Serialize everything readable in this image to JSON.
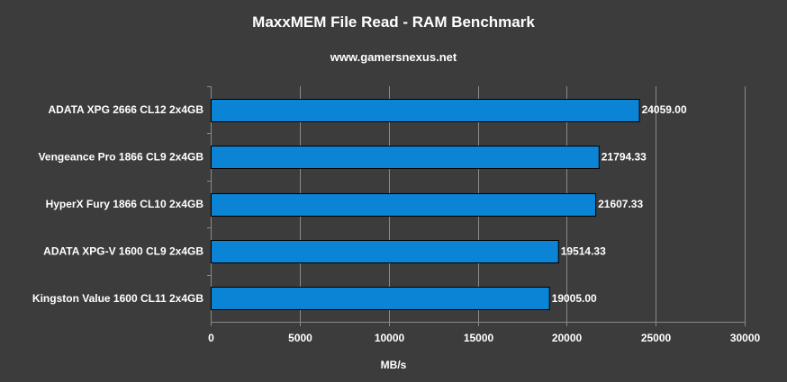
{
  "chart_data": {
    "type": "bar",
    "orientation": "horizontal",
    "title": "MaxxMEM File Read - RAM Benchmark",
    "subtitle": "www.gamersnexus.net",
    "xlabel": "MB/s",
    "ylabel": "",
    "xlim": [
      0,
      30000
    ],
    "x_ticks": [
      "0",
      "5000",
      "10000",
      "15000",
      "20000",
      "25000",
      "30000"
    ],
    "x_tick_values": [
      0,
      5000,
      10000,
      15000,
      20000,
      25000,
      30000
    ],
    "grid": "vertical",
    "legend": "none",
    "categories": [
      "ADATA XPG 2666 CL12 2x4GB",
      "Vengeance Pro 1866 CL9 2x4GB",
      "HyperX Fury 1866 CL10 2x4GB",
      "ADATA XPG-V 1600 CL9 2x4GB",
      "Kingston Value 1600 CL11 2x4GB"
    ],
    "values": [
      24059.0,
      21794.33,
      21607.33,
      19514.33,
      19005.0
    ],
    "value_labels": [
      "24059.00",
      "21794.33",
      "21607.33",
      "19514.33",
      "19005.00"
    ],
    "colors": {
      "background": "#3c3c3c",
      "bar_fill": "#0b84d6",
      "bar_stroke": "#000000",
      "grid": "#8a8a8a",
      "text": "#ffffff"
    }
  }
}
